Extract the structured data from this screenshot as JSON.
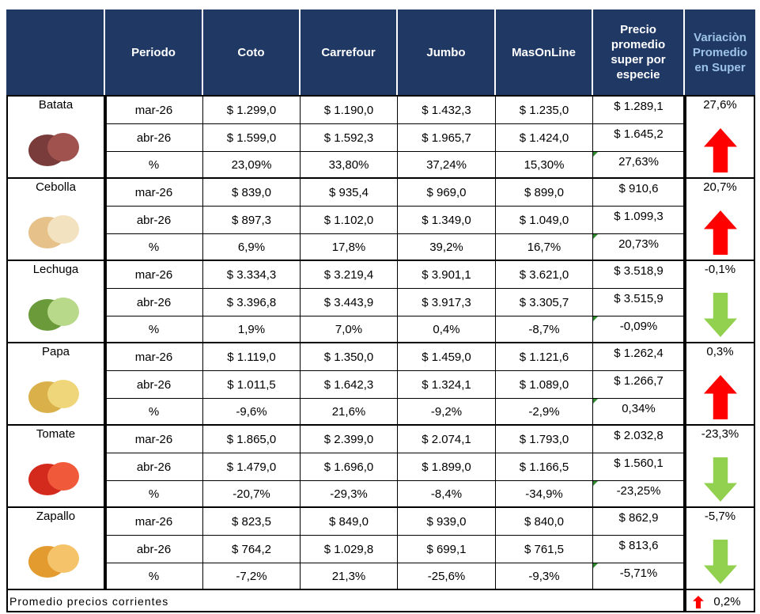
{
  "table": {
    "columns": [
      "Periodo",
      "Coto",
      "Carrefour",
      "Jumbo",
      "MasOnLine",
      "Precio promedio super por especie",
      "Variaciòn Promedio en Super"
    ],
    "products": [
      {
        "name": "Batata",
        "variation": "27,6%",
        "rows": [
          [
            "mar-26",
            "$ 1.299,0",
            "$ 1.190,0",
            "$ 1.432,3",
            "$ 1.235,0",
            "$ 1.289,1"
          ],
          [
            "abr-26",
            "$ 1.599,0",
            "$ 1.592,3",
            "$ 1.965,7",
            "$ 1.424,0",
            "$ 1.645,2"
          ],
          [
            "%",
            "23,09%",
            "33,80%",
            "37,24%",
            "15,30%",
            "27,63%"
          ]
        ]
      },
      {
        "name": "Cebolla",
        "variation": "20,7%",
        "rows": [
          [
            "mar-26",
            "$ 839,0",
            "$ 935,4",
            "$ 969,0",
            "$ 899,0",
            "$ 910,6"
          ],
          [
            "abr-26",
            "$ 897,3",
            "$ 1.102,0",
            "$ 1.349,0",
            "$ 1.049,0",
            "$ 1.099,3"
          ],
          [
            "%",
            "6,9%",
            "17,8%",
            "39,2%",
            "16,7%",
            "20,73%"
          ]
        ]
      },
      {
        "name": "Lechuga",
        "variation": "-0,1%",
        "rows": [
          [
            "mar-26",
            "$ 3.334,3",
            "$ 3.219,4",
            "$ 3.901,1",
            "$ 3.621,0",
            "$ 3.518,9"
          ],
          [
            "abr-26",
            "$ 3.396,8",
            "$ 3.443,9",
            "$ 3.917,3",
            "$ 3.305,7",
            "$ 3.515,9"
          ],
          [
            "%",
            "1,9%",
            "7,0%",
            "0,4%",
            "-8,7%",
            "-0,09%"
          ]
        ]
      },
      {
        "name": "Papa",
        "variation": "0,3%",
        "rows": [
          [
            "mar-26",
            "$ 1.119,0",
            "$ 1.350,0",
            "$ 1.459,0",
            "$ 1.121,6",
            "$ 1.262,4"
          ],
          [
            "abr-26",
            "$ 1.011,5",
            "$ 1.642,3",
            "$ 1.324,1",
            "$ 1.089,0",
            "$ 1.266,7"
          ],
          [
            "%",
            "-9,6%",
            "21,6%",
            "-9,2%",
            "-2,9%",
            "0,34%"
          ]
        ]
      },
      {
        "name": "Tomate",
        "variation": "-23,3%",
        "rows": [
          [
            "mar-26",
            "$ 1.865,0",
            "$ 2.399,0",
            "$ 2.074,1",
            "$ 1.793,0",
            "$ 2.032,8"
          ],
          [
            "abr-26",
            "$ 1.479,0",
            "$ 1.696,0",
            "$ 1.899,0",
            "$ 1.166,5",
            "$ 1.560,1"
          ],
          [
            "%",
            "-20,7%",
            "-29,3%",
            "-8,4%",
            "-34,9%",
            "-23,25%"
          ]
        ]
      },
      {
        "name": "Zapallo",
        "variation": "-5,7%",
        "rows": [
          [
            "mar-26",
            "$ 823,5",
            "$ 849,0",
            "$ 939,0",
            "$ 840,0",
            "$ 862,9"
          ],
          [
            "abr-26",
            "$ 764,2",
            "$ 1.029,8",
            "$ 699,1",
            "$ 761,5",
            "$ 813,6"
          ],
          [
            "%",
            "-7,2%",
            "21,3%",
            "-25,6%",
            "-9,3%",
            "-5,71%"
          ]
        ]
      }
    ],
    "footer": {
      "label": "Promedio precios corrientes",
      "variation": "0,2%"
    }
  }
}
